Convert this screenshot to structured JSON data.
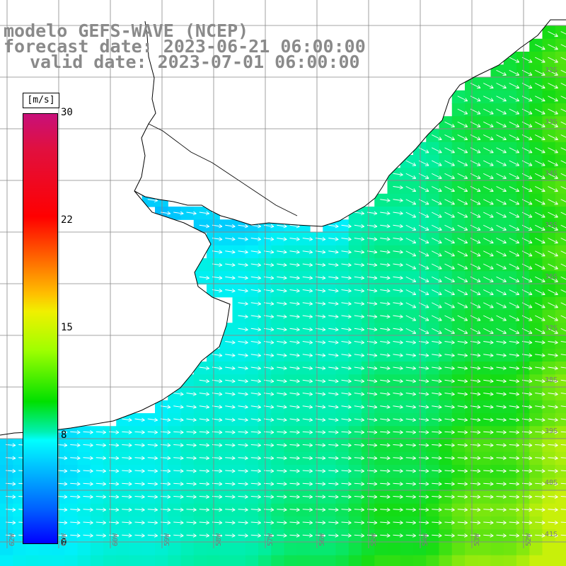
{
  "titles": {
    "line1": "modelo GEFS-WAVE (NCEP)",
    "line2": "forecast date: 2023-06-21 06:00:00",
    "line3": "valid date: 2023-07-01 06:00:00"
  },
  "colorbar": {
    "unit": "[m/s]",
    "ticks": [
      "30",
      "22",
      "15",
      "8",
      "0"
    ],
    "colors": [
      "#c8107a",
      "#ff0000",
      "#ffc000",
      "#f0f000",
      "#00e000",
      "#00ffff",
      "#0060ff",
      "#0000ff"
    ]
  },
  "map": {
    "land_color": "#ffffff",
    "coast_color": "#000000",
    "grid_color": "#888888",
    "arrow_color": "#ffffff",
    "lat_labels": [
      "32S",
      "33S",
      "34S",
      "35S",
      "36S",
      "37S",
      "38S",
      "39S",
      "40S",
      "41S"
    ],
    "lon_labels": [
      "62W",
      "61W",
      "60W",
      "59W",
      "58W",
      "57W",
      "56W",
      "55W",
      "54W",
      "53W",
      "52W"
    ]
  }
}
